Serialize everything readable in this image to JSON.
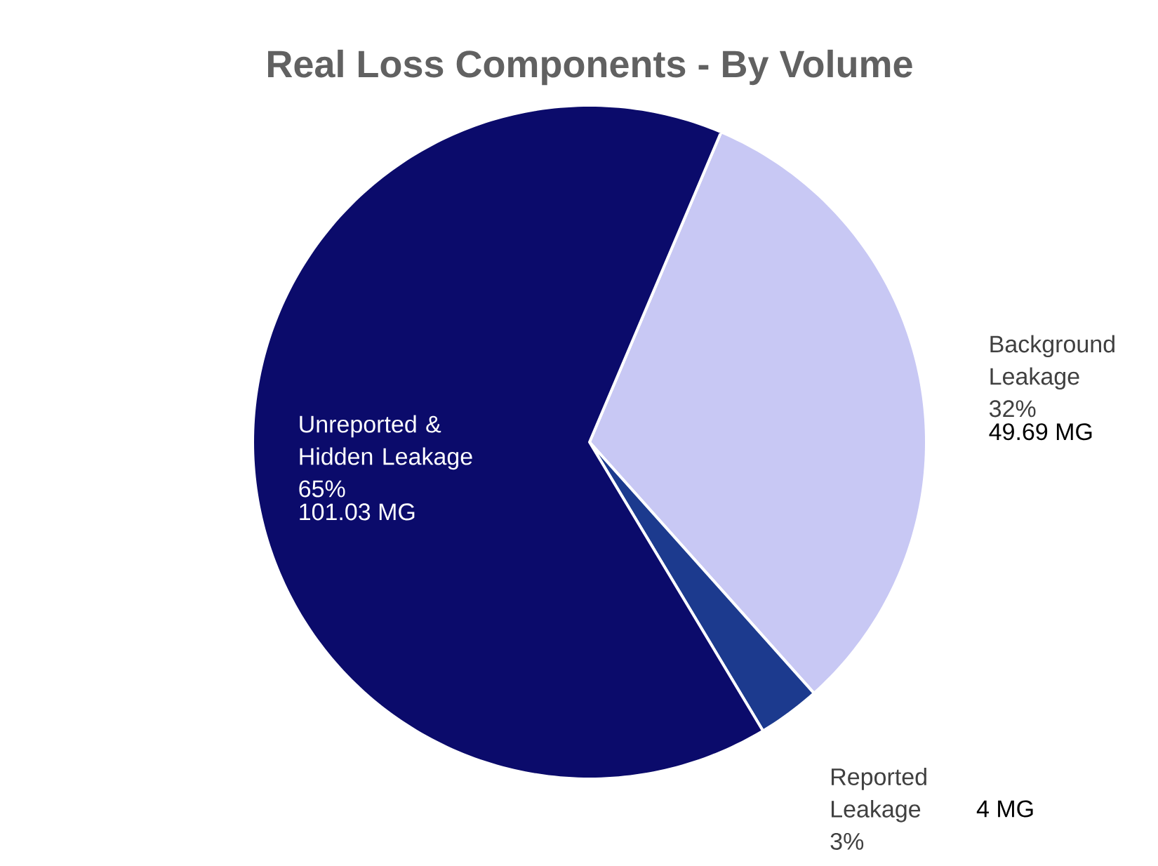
{
  "chart_data": {
    "type": "pie",
    "title": "Real Loss Components - By Volume",
    "categories": [
      "Background Leakage",
      "Reported Leakage",
      "Unreported & Hidden Leakage"
    ],
    "values": [
      32,
      3,
      65
    ],
    "colors": [
      "#c8c8f4",
      "#1c3a8e",
      "#0b0b6b"
    ],
    "value_labels": [
      "32%",
      "3%",
      "65%"
    ],
    "annotations": [
      "49.69 MG",
      "4 MG",
      "101.03 MG"
    ]
  }
}
